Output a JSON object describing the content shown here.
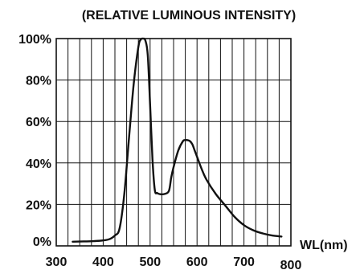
{
  "chart_data": {
    "type": "line",
    "title": "(RELATIVE LUMINOUS INTENSITY)",
    "xlabel": "WL(nm)",
    "ylabel": "",
    "xlim": [
      300,
      800
    ],
    "ylim": [
      0,
      100
    ],
    "x_ticks": [
      "300",
      "400",
      "500",
      "600",
      "700",
      "800"
    ],
    "y_ticks": [
      "0%",
      "20%",
      "40%",
      "60%",
      "80%",
      "100%"
    ],
    "grid": true,
    "line_color": "#111111",
    "series": [
      {
        "x": [
          335,
          350,
          380,
          410,
          425,
          435,
          445,
          455,
          465,
          475,
          480,
          485,
          490,
          495,
          500,
          505,
          510,
          515,
          520,
          530,
          540,
          545,
          550,
          560,
          570,
          575,
          580,
          585,
          590,
          595,
          600,
          610,
          620,
          640,
          660,
          680,
          700,
          720,
          740,
          760,
          780
        ],
        "y": [
          2,
          2.1,
          2.3,
          3,
          5,
          8.5,
          25,
          52,
          78,
          96,
          99.5,
          100,
          99,
          92,
          68,
          42,
          27,
          25.5,
          25,
          25,
          26.5,
          33,
          38,
          46,
          50.5,
          51,
          51,
          50.5,
          49,
          46,
          43,
          37,
          32,
          25,
          19.5,
          14,
          10,
          7.5,
          6,
          5,
          4.5
        ]
      }
    ]
  }
}
